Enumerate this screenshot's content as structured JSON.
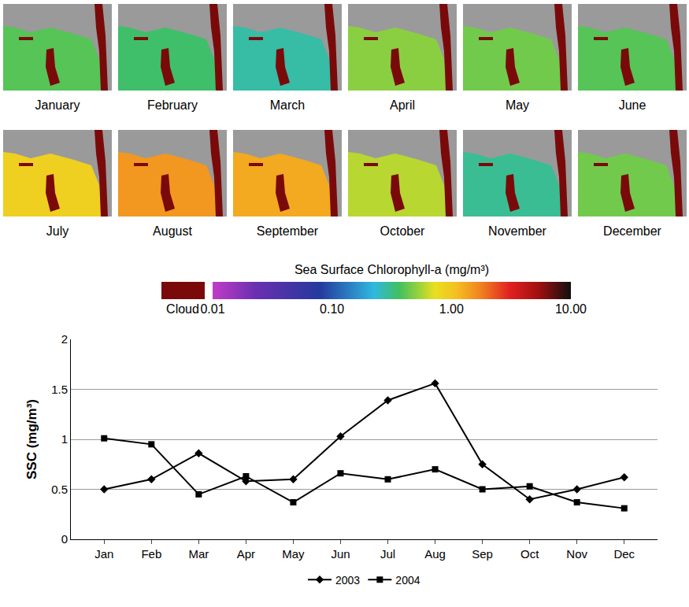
{
  "maps": {
    "panels": [
      {
        "label": "January",
        "chlorophyll": 0.4
      },
      {
        "label": "February",
        "chlorophyll": 0.35
      },
      {
        "label": "March",
        "chlorophyll": 0.28
      },
      {
        "label": "April",
        "chlorophyll": 0.5
      },
      {
        "label": "May",
        "chlorophyll": 0.45
      },
      {
        "label": "June",
        "chlorophyll": 0.4
      },
      {
        "label": "July",
        "chlorophyll": 0.9
      },
      {
        "label": "August",
        "chlorophyll": 1.5
      },
      {
        "label": "September",
        "chlorophyll": 1.3
      },
      {
        "label": "October",
        "chlorophyll": 0.6
      },
      {
        "label": "November",
        "chlorophyll": 0.3
      },
      {
        "label": "December",
        "chlorophyll": 0.45
      }
    ]
  },
  "colorbar": {
    "title": "Sea Surface Chlorophyll-a (mg/m³)",
    "cloud_label": "Cloud",
    "log": true,
    "range": [
      0.01,
      10
    ],
    "ticks": [
      0.01,
      {
        "value": 0.1,
        "label": "0.10"
      },
      {
        "value": 1,
        "label": "1.00"
      },
      {
        "value": 10,
        "label": "10.00"
      }
    ]
  },
  "chart_data": {
    "type": "line",
    "categories": [
      "Jan",
      "Feb",
      "Mar",
      "Apr",
      "May",
      "Jun",
      "Jul",
      "Aug",
      "Sep",
      "Oct",
      "Nov",
      "Dec"
    ],
    "series": [
      {
        "name": "2003",
        "color": "#000000",
        "marker": "diamond",
        "values": [
          0.5,
          0.6,
          0.86,
          0.58,
          0.6,
          1.03,
          1.39,
          1.56,
          0.75,
          0.4,
          0.5,
          0.62
        ]
      },
      {
        "name": "2004",
        "color": "#000000",
        "marker": "square",
        "values": [
          1.01,
          0.95,
          0.45,
          0.63,
          0.37,
          0.66,
          0.6,
          0.7,
          0.5,
          0.53,
          0.37,
          0.31
        ]
      }
    ],
    "y_label": "SSC (mg/m³)",
    "ylim": [
      0,
      2
    ],
    "yticks": [
      0,
      0.5,
      1,
      1.5,
      2
    ],
    "grid": true,
    "legend": "bottom"
  }
}
